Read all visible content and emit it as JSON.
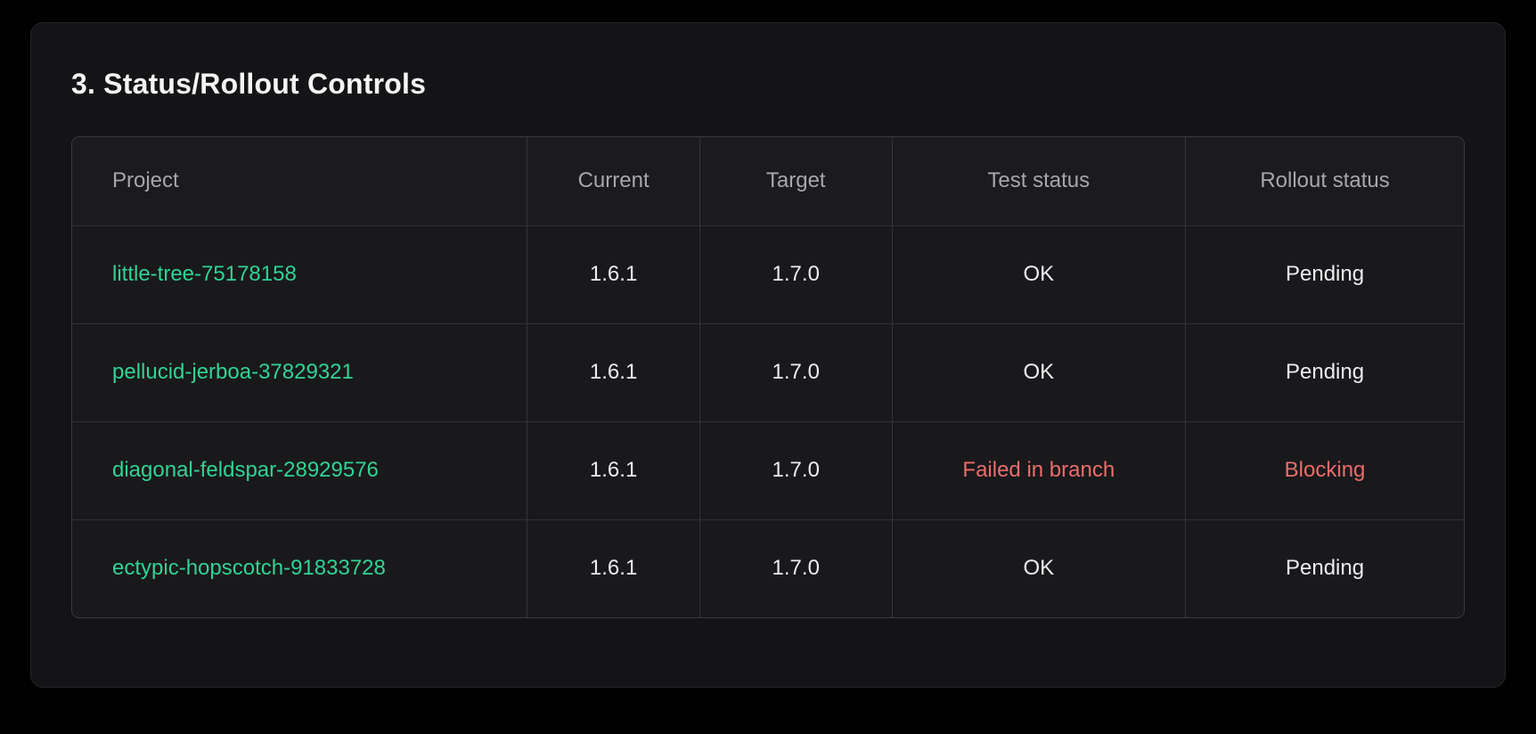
{
  "colors": {
    "project_link_green": "#30d394",
    "error_red": "#ea6d6c",
    "card_background": "#141416",
    "page_background": "#000000"
  },
  "section": {
    "title": "3. Status/Rollout Controls"
  },
  "table": {
    "columns": {
      "project": "Project",
      "current": "Current",
      "target": "Target",
      "test_status": "Test status",
      "rollout_status": "Rollout status"
    },
    "rows": [
      {
        "project": "little-tree-75178158",
        "current": "1.6.1",
        "target": "1.7.0",
        "test_status": "OK",
        "rollout_status": "Pending",
        "status_type": "ok"
      },
      {
        "project": "pellucid-jerboa-37829321",
        "current": "1.6.1",
        "target": "1.7.0",
        "test_status": "OK",
        "rollout_status": "Pending",
        "status_type": "ok"
      },
      {
        "project": "diagonal-feldspar-28929576",
        "current": "1.6.1",
        "target": "1.7.0",
        "test_status": "Failed in branch",
        "rollout_status": "Blocking",
        "status_type": "error"
      },
      {
        "project": "ectypic-hopscotch-91833728",
        "current": "1.6.1",
        "target": "1.7.0",
        "test_status": "OK",
        "rollout_status": "Pending",
        "status_type": "ok"
      }
    ]
  }
}
